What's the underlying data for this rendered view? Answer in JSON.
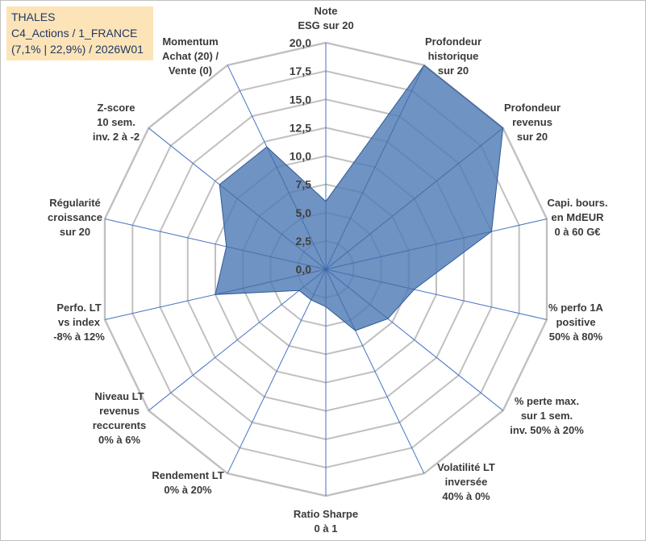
{
  "info": {
    "line1": "THALES",
    "line2": "C4_Actions / 1_FRANCE",
    "line3": "(7,1% | 22,9%) / 2026W01"
  },
  "colors": {
    "grid": "#c0c0c0",
    "spoke": "#4472c4",
    "fill": "#4f7bb4",
    "stroke": "#2f5a96",
    "info_bg": "#fce4b8",
    "info_text": "#1f3864"
  },
  "chart_data": {
    "type": "radar",
    "title": "",
    "rmin": 0,
    "rmax": 20,
    "ticks": [
      "0,0",
      "2,5",
      "5,0",
      "7,5",
      "10,0",
      "12,5",
      "15,0",
      "17,5",
      "20,0"
    ],
    "tick_values": [
      0,
      2.5,
      5,
      7.5,
      10,
      12.5,
      15,
      17.5,
      20
    ],
    "axes": [
      {
        "label": [
          "Note",
          "ESG sur 20"
        ],
        "value": 6.0
      },
      {
        "label": [
          "Profondeur",
          "historique",
          "sur 20"
        ],
        "value": 20.0
      },
      {
        "label": [
          "Profondeur",
          "revenus",
          "sur 20"
        ],
        "value": 20.0
      },
      {
        "label": [
          "Capi. bours.",
          "en MdEUR",
          "0 à 60 G€"
        ],
        "value": 15.0
      },
      {
        "label": [
          "% perfo 1A",
          "positive",
          "50% à 80%"
        ],
        "value": 8.0
      },
      {
        "label": [
          "% perte max.",
          "sur 1 sem.",
          "inv. 50% à 20%"
        ],
        "value": 7.0
      },
      {
        "label": [
          "Volatilité LT",
          "inversée",
          "40% à 0%"
        ],
        "value": 6.0
      },
      {
        "label": [
          "Ratio Sharpe",
          "0 à 1"
        ],
        "value": 3.3
      },
      {
        "label": [
          "Rendement LT",
          "0% à 20%"
        ],
        "value": 3.0
      },
      {
        "label": [
          "Niveau LT",
          "revenus",
          "reccurents",
          "0% à 6%"
        ],
        "value": 3.0
      },
      {
        "label": [
          "Perfo. LT",
          "vs index",
          "-8% à 12%"
        ],
        "value": 10.0
      },
      {
        "label": [
          "Régularité",
          "croissance",
          "sur 20"
        ],
        "value": 9.0
      },
      {
        "label": [
          "Z-score",
          "10 sem.",
          "inv. 2 à -2"
        ],
        "value": 12.0
      },
      {
        "label": [
          "Momentum",
          "Achat (20) /",
          "Vente (0)"
        ],
        "value": 12.0
      }
    ]
  }
}
